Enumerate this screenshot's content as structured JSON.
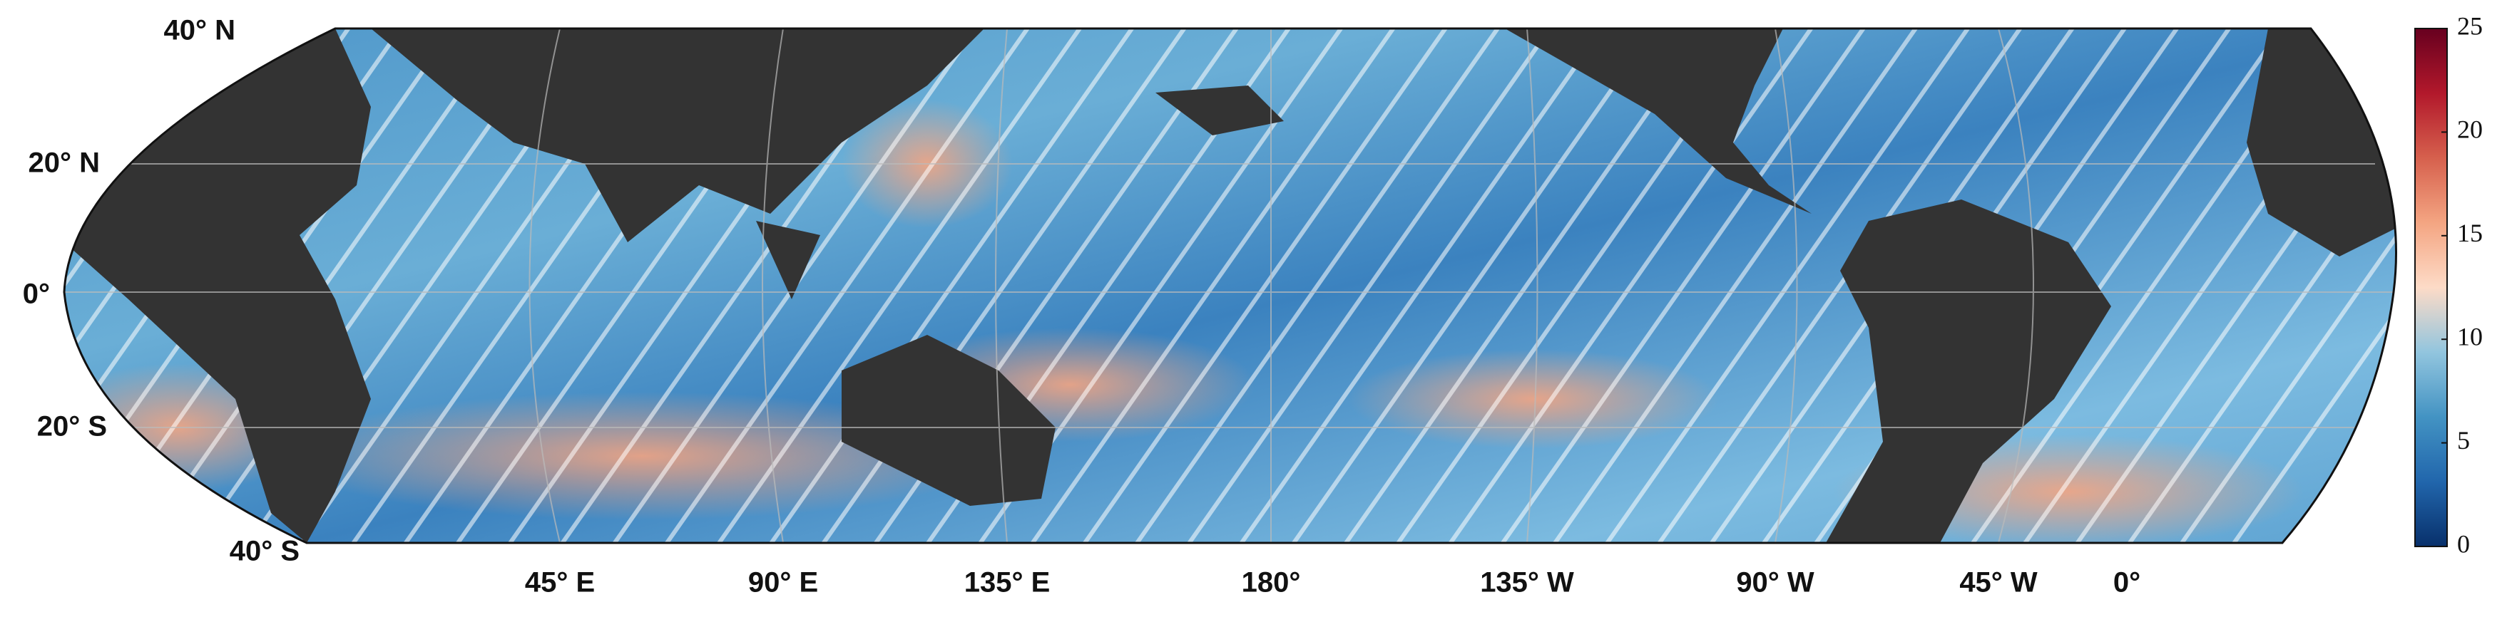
{
  "map": {
    "lat_labels": [
      "40° N",
      "20° N",
      "0°",
      "20° S",
      "40° S"
    ],
    "lon_labels": [
      "45° E",
      "90° E",
      "135° E",
      "180°",
      "135° W",
      "90° W",
      "45° W",
      "0°"
    ]
  },
  "colorbar": {
    "lim": [
      0,
      25
    ],
    "ticks": [
      0,
      5,
      10,
      15,
      20,
      25
    ],
    "colors": [
      "#08306b",
      "#2166ac",
      "#4393c3",
      "#92c5de",
      "#fddbc7",
      "#f4a582",
      "#d6604d",
      "#b2182b",
      "#67001f"
    ]
  }
}
